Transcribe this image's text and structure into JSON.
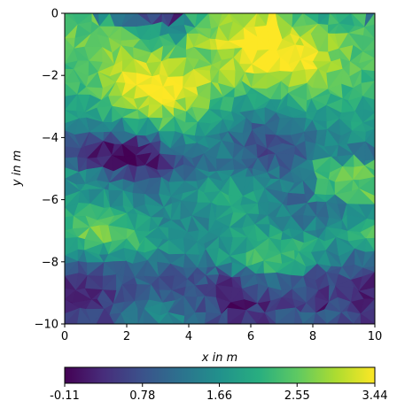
{
  "chart_data": {
    "type": "heatmap",
    "title": "",
    "xlabel": "x in m",
    "ylabel": "y in m",
    "xlim": [
      0,
      10
    ],
    "ylim": [
      -10,
      0
    ],
    "xticks": [
      0,
      2,
      4,
      6,
      8,
      10
    ],
    "yticks": [
      0,
      -2,
      -4,
      -6,
      -8,
      -10
    ],
    "xtick_labels": [
      "0",
      "2",
      "4",
      "6",
      "8",
      "10"
    ],
    "ytick_labels": [
      "0",
      "−2",
      "−4",
      "−6",
      "−8",
      "−10"
    ],
    "grid": false,
    "colormap": "viridis",
    "colorbar": {
      "orientation": "horizontal",
      "position": "bottom",
      "range": [
        -0.11,
        3.44
      ],
      "ticks": [
        -0.11,
        0.78,
        1.66,
        2.55,
        3.44
      ],
      "tick_labels": [
        "-0.11",
        "0.78",
        "1.66",
        "2.55",
        "3.44"
      ]
    },
    "depth_profile": {
      "y": [
        0,
        -1,
        -2,
        -3,
        -4,
        -4.6,
        -5.5,
        -6.5,
        -7.5,
        -8.5,
        -9.2,
        -10
      ],
      "value": [
        2.0,
        2.8,
        3.0,
        2.3,
        1.3,
        0.8,
        1.5,
        1.7,
        2.1,
        1.0,
        0.7,
        0.9
      ]
    }
  }
}
